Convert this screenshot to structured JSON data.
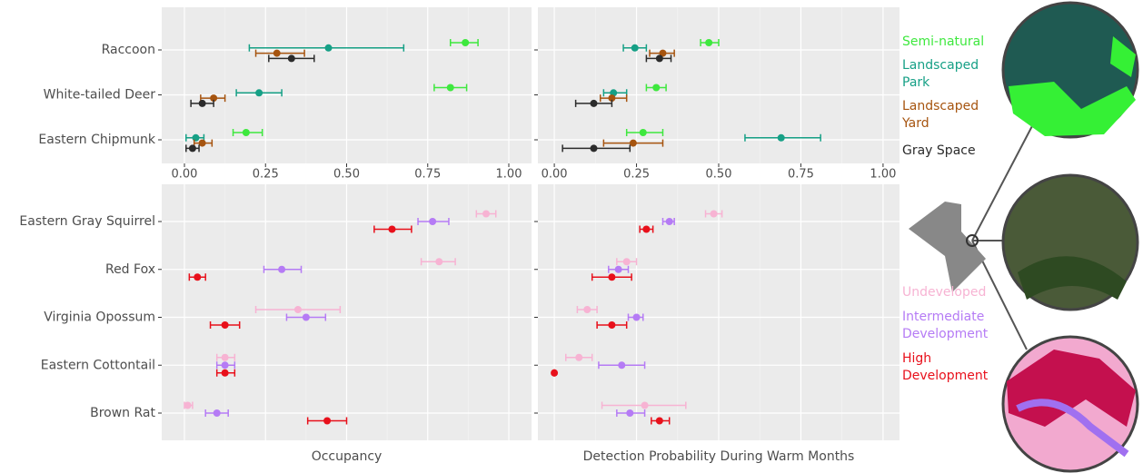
{
  "chart_data": [
    {
      "type": "errorbar",
      "categories": [
        "Raccoon",
        "White-tailed Deer",
        "Eastern Chipmunk"
      ],
      "xlim": [
        -0.07,
        1.07
      ],
      "xticks": [
        {
          "value": 0,
          "label": "0.00"
        },
        {
          "value": 0.25,
          "label": "0.25"
        },
        {
          "value": 0.5,
          "label": "0.50"
        },
        {
          "value": 0.75,
          "label": "0.75"
        },
        {
          "value": 1,
          "label": "1.00"
        }
      ],
      "grid": true,
      "series": [
        {
          "name": "Semi-natural",
          "color": "#3ee83e",
          "values": [
            0.866,
            0.82,
            0.19
          ],
          "lower": [
            0.82,
            0.77,
            0.15
          ],
          "upper": [
            0.905,
            0.87,
            0.24
          ]
        },
        {
          "name": "Landscaped Park",
          "color": "#16a086",
          "values": [
            0.444,
            0.23,
            0.035
          ],
          "lower": [
            0.2,
            0.16,
            0.005
          ],
          "upper": [
            0.676,
            0.3,
            0.06
          ]
        },
        {
          "name": "Landscaped Yard",
          "color": "#a6540f",
          "values": [
            0.285,
            0.09,
            0.055
          ],
          "lower": [
            0.22,
            0.05,
            0.03
          ],
          "upper": [
            0.37,
            0.125,
            0.085
          ]
        },
        {
          "name": "Gray Space",
          "color": "#2b2b2b",
          "values": [
            0.33,
            0.055,
            0.025
          ],
          "lower": [
            0.26,
            0.02,
            0.005
          ],
          "upper": [
            0.4,
            0.09,
            0.045
          ]
        }
      ]
    },
    {
      "type": "errorbar",
      "xlim": [
        -0.05,
        1.05
      ],
      "xticks": [
        {
          "value": 0,
          "label": "0.00"
        },
        {
          "value": 0.25,
          "label": "0.25"
        },
        {
          "value": 0.5,
          "label": "0.50"
        },
        {
          "value": 0.75,
          "label": "0.75"
        },
        {
          "value": 1,
          "label": "1.00"
        }
      ],
      "grid": true,
      "series": [
        {
          "color": "#3ee83e",
          "values": [
            0.47,
            0.31,
            0.27
          ],
          "lower": [
            0.445,
            0.28,
            0.22
          ],
          "upper": [
            0.5,
            0.34,
            0.33
          ]
        },
        {
          "color": "#16a086",
          "values": [
            0.245,
            0.18,
            0.69
          ],
          "lower": [
            0.21,
            0.15,
            0.58
          ],
          "upper": [
            0.28,
            0.22,
            0.81
          ]
        },
        {
          "color": "#a6540f",
          "values": [
            0.33,
            0.175,
            0.24
          ],
          "lower": [
            0.29,
            0.14,
            0.15
          ],
          "upper": [
            0.365,
            0.22,
            0.33
          ]
        },
        {
          "color": "#2b2b2b",
          "values": [
            0.32,
            0.12,
            0.12
          ],
          "lower": [
            0.28,
            0.065,
            0.025
          ],
          "upper": [
            0.355,
            0.175,
            0.23
          ]
        }
      ]
    },
    {
      "type": "errorbar",
      "categories": [
        "Eastern Gray Squirrel",
        "Red Fox",
        "Virginia Opossum",
        "Eastern Cottontail",
        "Brown Rat"
      ],
      "xlabel": "Occupancy",
      "xlim": [
        -0.07,
        1.07
      ],
      "xticks": [
        0,
        0.25,
        0.5,
        0.75,
        1
      ],
      "grid": true,
      "series": [
        {
          "name": "Undeveloped",
          "color": "#f7b3d3",
          "values": [
            0.93,
            0.785,
            0.35,
            0.125,
            0.01
          ],
          "lower": [
            0.9,
            0.73,
            0.22,
            0.1,
            0
          ],
          "upper": [
            0.96,
            0.835,
            0.48,
            0.155,
            0.025
          ]
        },
        {
          "name": "Intermediate Development",
          "color": "#b57bf5",
          "values": [
            0.765,
            0.3,
            0.375,
            0.125,
            0.1
          ],
          "lower": [
            0.72,
            0.245,
            0.315,
            0.1,
            0.065
          ],
          "upper": [
            0.815,
            0.36,
            0.435,
            0.155,
            0.135
          ]
        },
        {
          "name": "High Development",
          "color": "#e8101b",
          "values": [
            0.64,
            0.04,
            0.125,
            0.125,
            0.44
          ],
          "lower": [
            0.585,
            0.015,
            0.08,
            0.1,
            0.38
          ],
          "upper": [
            0.7,
            0.065,
            0.17,
            0.155,
            0.5
          ]
        }
      ]
    },
    {
      "type": "errorbar",
      "xlabel": "Detection Probability During Warm Months",
      "xlim": [
        -0.05,
        1.05
      ],
      "xticks": [
        0,
        0.25,
        0.5,
        0.75,
        1
      ],
      "grid": true,
      "series": [
        {
          "color": "#f7b3d3",
          "values": [
            0.485,
            0.22,
            0.1,
            0.075,
            0.275
          ],
          "lower": [
            0.46,
            0.19,
            0.07,
            0.035,
            0.145
          ],
          "upper": [
            0.51,
            0.25,
            0.13,
            0.115,
            0.4
          ]
        },
        {
          "color": "#b57bf5",
          "values": [
            0.35,
            0.195,
            0.25,
            0.205,
            0.23
          ],
          "lower": [
            0.33,
            0.165,
            0.225,
            0.135,
            0.19
          ],
          "upper": [
            0.365,
            0.225,
            0.27,
            0.275,
            0.275
          ]
        },
        {
          "color": "#e8101b",
          "values": [
            0.28,
            0.175,
            0.175,
            0,
            0.32
          ],
          "lower": [
            0.26,
            0.115,
            0.13,
            0,
            0.295
          ],
          "upper": [
            0.3,
            0.235,
            0.22,
            0,
            0.35
          ]
        }
      ]
    }
  ]
}
